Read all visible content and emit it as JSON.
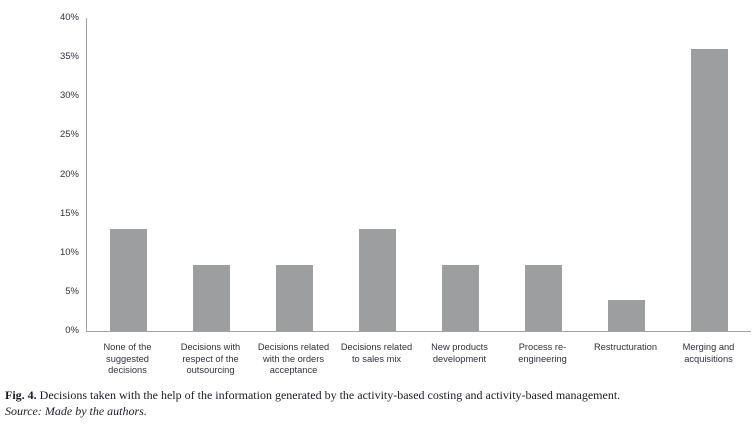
{
  "figure": {
    "caption_label": "Fig. 4.",
    "caption_text": "Decisions taken with the help of the information generated by the activity-based costing and activity-based management.",
    "source_text": "Source: Made by the authors."
  },
  "chart_data": {
    "type": "bar",
    "title": "",
    "xlabel": "",
    "ylabel": "",
    "categories": [
      "None of the\nsuggested\ndecisions",
      "Decisions with\nrespect of the\noutsourcing",
      "Decisions related\nwith the orders\nacceptance",
      "Decisions related\nto sales mix",
      "New products\ndevelopment",
      "Process re-\nengineering",
      "Restructuration",
      "Merging and\nacquisitions"
    ],
    "values": [
      13,
      8.5,
      8.5,
      13,
      8.5,
      8.5,
      4,
      36
    ],
    "unit": "%",
    "ylim": [
      0,
      40
    ],
    "y_tick_step": 5,
    "y_ticks": [
      "0%",
      "5%",
      "10%",
      "15%",
      "20%",
      "25%",
      "30%",
      "35%",
      "40%"
    ],
    "grid": false,
    "legend_position": "none",
    "bar_color": "#9c9ea0",
    "axis_color": "#a3a3a3",
    "label_color": "#30303b"
  }
}
